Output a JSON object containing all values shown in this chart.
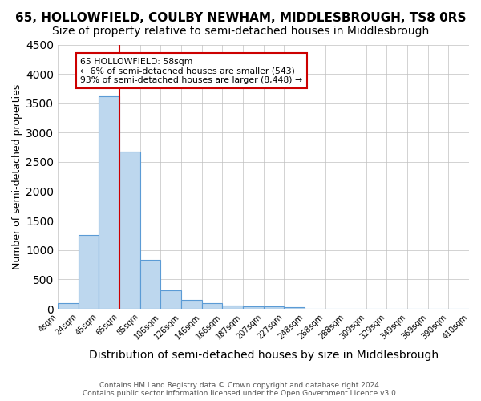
{
  "title1": "65, HOLLOWFIELD, COULBY NEWHAM, MIDDLESBROUGH, TS8 0RS",
  "title2": "Size of property relative to semi-detached houses in Middlesbrough",
  "xlabel": "Distribution of semi-detached houses by size in Middlesbrough",
  "ylabel": "Number of semi-detached properties",
  "footer": "Contains HM Land Registry data © Crown copyright and database right 2024.\nContains public sector information licensed under the Open Government Licence v3.0.",
  "bin_edges": [
    "4sqm",
    "24sqm",
    "45sqm",
    "65sqm",
    "85sqm",
    "106sqm",
    "126sqm",
    "146sqm",
    "166sqm",
    "187sqm",
    "207sqm",
    "227sqm",
    "248sqm",
    "268sqm",
    "288sqm",
    "309sqm",
    "329sqm",
    "349sqm",
    "369sqm",
    "390sqm",
    "410sqm"
  ],
  "bar_values": [
    90,
    1250,
    3620,
    2680,
    830,
    310,
    155,
    100,
    60,
    35,
    35,
    30,
    5,
    2,
    1,
    0,
    0,
    0,
    0,
    0
  ],
  "bar_color": "#bdd7ee",
  "bar_edge_color": "#5b9bd5",
  "property_label": "65 HOLLOWFIELD: 58sqm",
  "annotation_line1": "← 6% of semi-detached houses are smaller (543)",
  "annotation_line2": "93% of semi-detached houses are larger (8,448) →",
  "vline_color": "#cc0000",
  "annotation_box_edge": "#cc0000",
  "ylim": [
    0,
    4500
  ],
  "yticks": [
    0,
    500,
    1000,
    1500,
    2000,
    2500,
    3000,
    3500,
    4000,
    4500
  ],
  "background_color": "#ffffff",
  "title1_fontsize": 11,
  "title2_fontsize": 10,
  "xlabel_fontsize": 10,
  "ylabel_fontsize": 9,
  "vline_x": 2.5
}
